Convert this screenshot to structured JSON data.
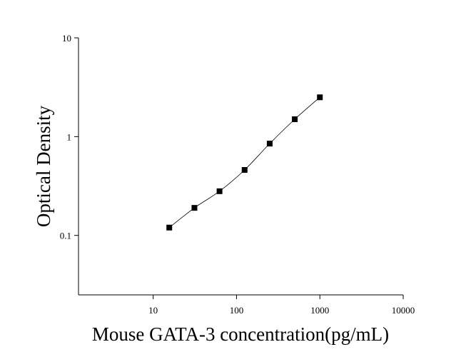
{
  "chart_data": {
    "type": "scatter",
    "x_label": "Mouse GATA-3 concentration(pg/mL)",
    "y_label": "Optical Density",
    "x": [
      15.6,
      31.25,
      62.5,
      125,
      250,
      500,
      1000
    ],
    "series": [
      {
        "color": "#000000",
        "values": [
          0.12,
          0.19,
          0.28,
          0.46,
          0.85,
          1.5,
          2.5
        ]
      }
    ],
    "xlim": [
      1.27,
      10000
    ],
    "ylim": [
      0.025,
      10
    ],
    "xticks": [
      10,
      100,
      1000,
      10000
    ],
    "yticks": [
      0.1,
      1,
      10
    ],
    "log_x": true,
    "log_y": true,
    "fit_curve": true
  }
}
